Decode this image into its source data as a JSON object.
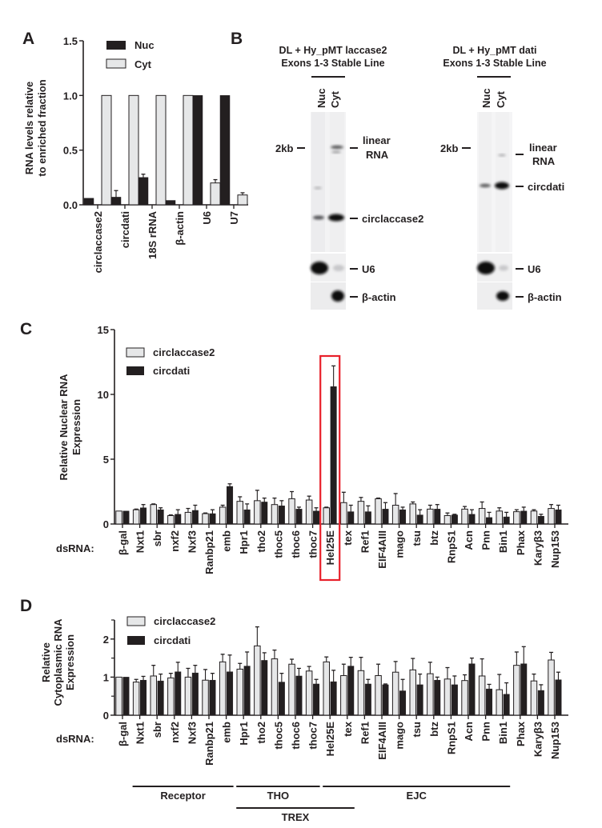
{
  "figure": {
    "colors": {
      "nuc": "#231f20",
      "cyt": "#e6e7e8",
      "highlight": "#e8202a",
      "axis": "#231f20"
    }
  },
  "chart_data": [
    {
      "id": "A",
      "panel_letter": "A",
      "type": "bar",
      "ylabel": [
        "RNA levels relative",
        "to enriched fraction"
      ],
      "ylim": [
        0,
        1.5
      ],
      "yticks": [
        "0.0",
        "0.5",
        "1.0",
        "1.5"
      ],
      "ytick_values": [
        0,
        0.5,
        1.0,
        1.5
      ],
      "categories": [
        "circlaccase2",
        "circdati",
        "18S rRNA",
        "β-actin",
        "U6",
        "U7"
      ],
      "legend": {
        "position": "top-left",
        "entries": [
          "Nuc",
          "Cyt"
        ]
      },
      "series": [
        {
          "name": "Nuc",
          "values": [
            0.06,
            0.07,
            0.25,
            0.04,
            1.0,
            1.0
          ],
          "errors": [
            0,
            0.06,
            0.03,
            0,
            0,
            0
          ]
        },
        {
          "name": "Cyt",
          "values": [
            1.0,
            1.0,
            1.0,
            1.0,
            0.2,
            0.09
          ],
          "errors": [
            0,
            0,
            0,
            0,
            0.03,
            0.02
          ]
        }
      ]
    },
    {
      "id": "C",
      "panel_letter": "C",
      "type": "bar",
      "ylabel": [
        "Relative Nuclear RNA",
        "Expression"
      ],
      "xlabel": "dsRNA:",
      "ylim": [
        0,
        15
      ],
      "yticks": [
        "0",
        "5",
        "10",
        "15"
      ],
      "ytick_values": [
        0,
        5,
        10,
        15
      ],
      "categories": [
        "β-gal",
        "Nxt1",
        "sbr",
        "nxf2",
        "Nxf3",
        "Ranbp21",
        "emb",
        "Hpr1",
        "tho2",
        "thoc5",
        "thoc6",
        "thoc7",
        "Hel25E",
        "tex",
        "Ref1",
        "EIF4AIII",
        "mago",
        "tsu",
        "btz",
        "RnpS1",
        "Acn",
        "Pnn",
        "Bin1",
        "Phax",
        "Karyβ3",
        "Nup153"
      ],
      "highlight_category": "Hel25E",
      "legend": {
        "position": "top-left",
        "entries": [
          "circlaccase2",
          "circdati"
        ]
      },
      "series": [
        {
          "name": "circlaccase2",
          "values": [
            1.0,
            1.1,
            1.5,
            0.65,
            0.9,
            0.8,
            1.3,
            1.75,
            1.8,
            1.5,
            1.95,
            1.85,
            1.25,
            1.65,
            1.75,
            1.95,
            1.45,
            1.55,
            1.15,
            0.65,
            1.15,
            1.2,
            1.0,
            0.95,
            1.0,
            1.2
          ],
          "errors": [
            0,
            0.05,
            0.05,
            0.05,
            0.3,
            0.05,
            0.15,
            0.35,
            0.8,
            0.5,
            0.55,
            0.3,
            0.05,
            0.8,
            0.3,
            0.05,
            0.9,
            0.15,
            0.3,
            0.2,
            0.2,
            0.5,
            0.25,
            0.15,
            0.1,
            0.3
          ]
        },
        {
          "name": "circdati",
          "values": [
            1.0,
            1.25,
            1.1,
            0.75,
            1.05,
            0.8,
            2.9,
            1.1,
            1.7,
            1.4,
            1.15,
            1.0,
            10.6,
            0.95,
            0.95,
            1.15,
            1.1,
            0.7,
            1.15,
            0.7,
            0.75,
            0.5,
            0.55,
            1.0,
            0.6,
            1.1
          ],
          "errors": [
            0,
            0.25,
            0.15,
            0.35,
            0.4,
            0.3,
            0.2,
            0.45,
            0.3,
            0.4,
            0.15,
            0.25,
            1.6,
            0.5,
            0.45,
            0.5,
            0.2,
            0.4,
            0.35,
            0.05,
            0.35,
            0.4,
            0.35,
            0.3,
            0.15,
            0.35
          ]
        }
      ]
    },
    {
      "id": "D",
      "panel_letter": "D",
      "type": "bar",
      "ylabel": [
        "Relative",
        "Cytoplasmic RNA",
        "Expression"
      ],
      "xlabel": "dsRNA:",
      "ylim": [
        0,
        2.5
      ],
      "yticks": [
        "0",
        "1",
        "2"
      ],
      "ytick_values": [
        0,
        1,
        2
      ],
      "categories": [
        "β-gal",
        "Nxt1",
        "sbr",
        "nxf2",
        "Nxf3",
        "Ranbp21",
        "emb",
        "Hpr1",
        "tho2",
        "thoc5",
        "thoc6",
        "thoc7",
        "Hel25E",
        "tex",
        "Ref1",
        "EIF4AIII",
        "mago",
        "tsu",
        "btz",
        "RnpS1",
        "Acn",
        "Pnn",
        "Bin1",
        "Phax",
        "Karyβ3",
        "Nup153"
      ],
      "legend": {
        "position": "top-left",
        "entries": [
          "circlaccase2",
          "circdati"
        ]
      },
      "series": [
        {
          "name": "circlaccase2",
          "values": [
            1.0,
            0.87,
            1.03,
            0.98,
            1.0,
            0.92,
            1.4,
            1.21,
            1.82,
            1.48,
            1.34,
            1.16,
            1.4,
            1.04,
            1.17,
            1.04,
            1.13,
            1.19,
            1.09,
            0.95,
            0.91,
            1.03,
            0.67,
            1.31,
            0.9,
            1.45
          ],
          "errors": [
            0,
            0.07,
            0.28,
            0.12,
            0.23,
            0.28,
            0.2,
            0.15,
            0.5,
            0.23,
            0.13,
            0.12,
            0.13,
            0.3,
            0.35,
            0.3,
            0.28,
            0.3,
            0.3,
            0.3,
            0.15,
            0.45,
            0.4,
            0.35,
            0.18,
            0.2
          ]
        },
        {
          "name": "circdati",
          "values": [
            1.0,
            0.92,
            0.9,
            1.14,
            1.11,
            0.92,
            1.14,
            1.29,
            1.44,
            0.87,
            1.03,
            0.82,
            0.88,
            1.29,
            0.82,
            0.8,
            0.64,
            0.8,
            0.92,
            0.8,
            1.35,
            0.69,
            0.55,
            1.35,
            0.65,
            0.93
          ],
          "errors": [
            0,
            0.1,
            0.18,
            0.25,
            0.2,
            0.18,
            0.44,
            0.37,
            0.2,
            0.23,
            0.2,
            0.12,
            0.3,
            0.23,
            0.12,
            0.02,
            0.3,
            0.28,
            0.08,
            0.23,
            0.15,
            0.12,
            0.3,
            0.45,
            0.15,
            0.2
          ]
        }
      ],
      "groups": [
        {
          "label": "Receptor",
          "from": "Nxt1",
          "to": "emb",
          "row": 1
        },
        {
          "label": "THO",
          "from": "Hpr1",
          "to": "thoc7",
          "row": 1
        },
        {
          "label": "EJC",
          "from": "Hel25E",
          "to": "Bin1",
          "row": 1
        },
        {
          "label": "TREX",
          "from": "Hpr1",
          "to": "tex",
          "row": 2
        }
      ]
    }
  ],
  "blots": {
    "panel_letter": "B",
    "left": {
      "title_line1": "DL + Hy_pMT laccase2",
      "title_line2": "Exons 1-3 Stable Line",
      "lanes": [
        "Nuc",
        "Cyt"
      ],
      "marker": "2kb",
      "labels": {
        "linear1": "linear",
        "linear2": "RNA",
        "circ": "circlaccase2",
        "u6": "U6",
        "actin": "β-actin"
      }
    },
    "right": {
      "title_line1": "DL + Hy_pMT dati",
      "title_line2": "Exons 1-3 Stable Line",
      "lanes": [
        "Nuc",
        "Cyt"
      ],
      "marker": "2kb",
      "labels": {
        "linear1": "linear",
        "linear2": "RNA",
        "circ": "circdati",
        "u6": "U6",
        "actin": "β-actin"
      }
    }
  }
}
